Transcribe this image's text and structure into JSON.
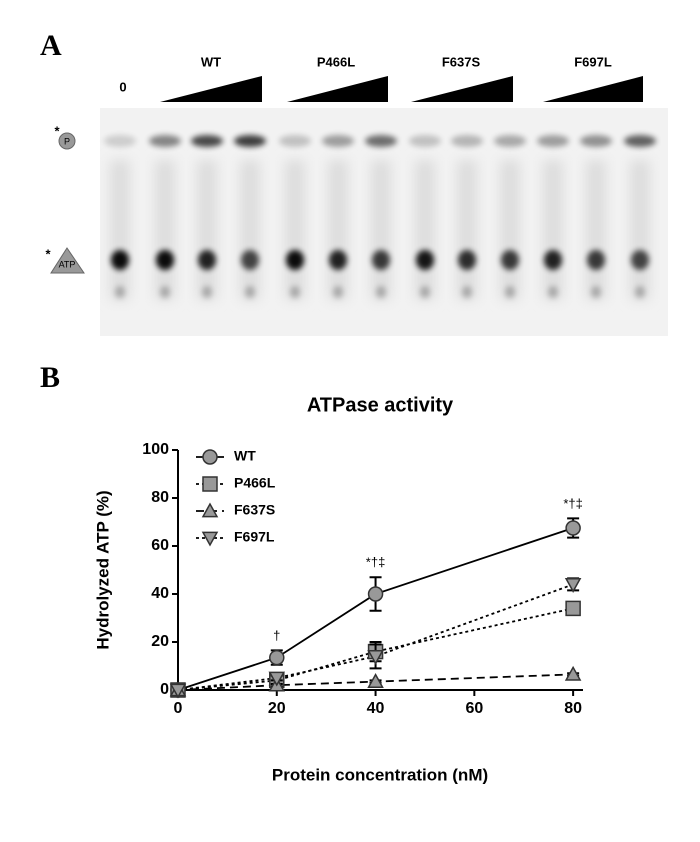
{
  "panel_a": {
    "label": "A",
    "lanes": [
      "0",
      "WT",
      "P466L",
      "F637S",
      "F697L"
    ],
    "product_star": "*",
    "product": "P",
    "substrate_star": "*",
    "substrate": "ATP"
  },
  "panel_b_label": "B",
  "chart_data": {
    "type": "line",
    "title": "ATPase activity",
    "x_label": "Protein concentration (nM)",
    "y_label": "Hydrolyzed ATP (%)",
    "x": [
      0,
      20,
      40,
      80
    ],
    "series": [
      {
        "name": "WT",
        "color": "#999999",
        "marker": "circle",
        "line_style": "solid",
        "values": [
          0,
          13.5,
          40,
          67.5
        ],
        "errors": [
          0,
          3,
          7,
          4
        ]
      },
      {
        "name": "P466L",
        "color": "#999999",
        "marker": "square",
        "line_style": "dotted",
        "values": [
          0,
          4,
          16,
          34
        ],
        "errors": [
          0,
          1,
          4,
          1
        ]
      },
      {
        "name": "F637S",
        "color": "#999999",
        "marker": "triangle-up",
        "line_style": "dashed",
        "values": [
          0,
          2,
          3.5,
          6.5
        ],
        "errors": [
          0,
          0.5,
          0.5,
          0.5
        ]
      },
      {
        "name": "F697L",
        "color": "#999999",
        "marker": "triangle-down",
        "line_style": "dotted",
        "values": [
          0,
          5,
          14,
          44
        ],
        "errors": [
          0,
          1,
          5,
          2.5
        ]
      }
    ],
    "annotations": [
      null,
      "†",
      "*†‡",
      "*†‡"
    ],
    "xlim": [
      0,
      82
    ],
    "ylim": [
      0,
      100
    ],
    "xticks": [
      0,
      20,
      40,
      60,
      80
    ],
    "yticks": [
      0,
      20,
      40,
      60,
      80,
      100
    ],
    "legend": "upper left",
    "grid": false
  }
}
